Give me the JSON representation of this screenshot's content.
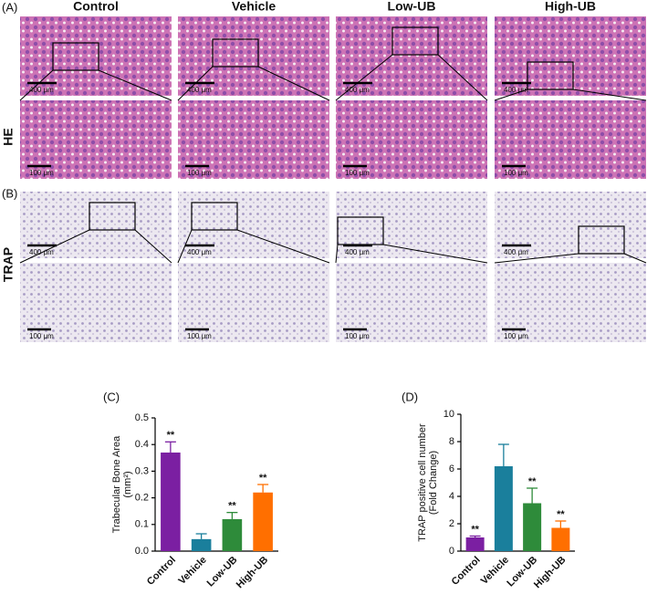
{
  "figure": {
    "panel_labels": [
      "(A)",
      "(B)"
    ],
    "row_labels": [
      "HE",
      "TRAP"
    ],
    "column_headers": [
      "Control",
      "Vehicle",
      "Low-UB",
      "High-UB"
    ],
    "scale_labels": [
      [
        "400 μm",
        "400 μm",
        "400 μm",
        "400 μm"
      ],
      [
        "100 μm",
        "100 μm",
        "100 μm",
        "100 μm"
      ],
      [
        "400 μm",
        "400 μm",
        "400 μm",
        "400 μm"
      ],
      [
        "100 μm",
        "100 μm",
        "100 μm",
        "100 μm"
      ]
    ]
  },
  "chart_data": [
    {
      "type": "bar",
      "panel_label": "(C)",
      "y_label": [
        "Trabecular Bone Area",
        "(mm²)"
      ],
      "categories": [
        "Control",
        "Vehicle",
        "Low-UB",
        "High-UB"
      ],
      "values": [
        0.37,
        0.045,
        0.12,
        0.22
      ],
      "errors": [
        0.04,
        0.02,
        0.025,
        0.03
      ],
      "annotations": [
        "**",
        null,
        "**",
        "**"
      ],
      "colors": [
        "#7b1fa2",
        "#1a7f9c",
        "#2e8b3a",
        "#ff6f00"
      ],
      "ylim": [
        0,
        0.5
      ],
      "yticks": [
        {
          "value": 0,
          "label": "0.0"
        },
        0.1,
        0.2,
        0.3,
        0.4,
        0.5
      ]
    },
    {
      "type": "bar",
      "panel_label": "(D)",
      "y_label": [
        "TRAP positive cell number",
        "(Fold Change)"
      ],
      "categories": [
        "Control",
        "Vehicle",
        "Low-UB",
        "High-UB"
      ],
      "values": [
        1.0,
        6.2,
        3.5,
        1.7
      ],
      "errors": [
        0.1,
        1.6,
        1.1,
        0.5
      ],
      "annotations": [
        "**",
        null,
        "**",
        "**"
      ],
      "colors": [
        "#7b1fa2",
        "#1a7f9c",
        "#2e8b3a",
        "#ff6f00"
      ],
      "ylim": [
        0,
        10
      ],
      "yticks": [
        0,
        2,
        4,
        6,
        8,
        10
      ]
    }
  ]
}
